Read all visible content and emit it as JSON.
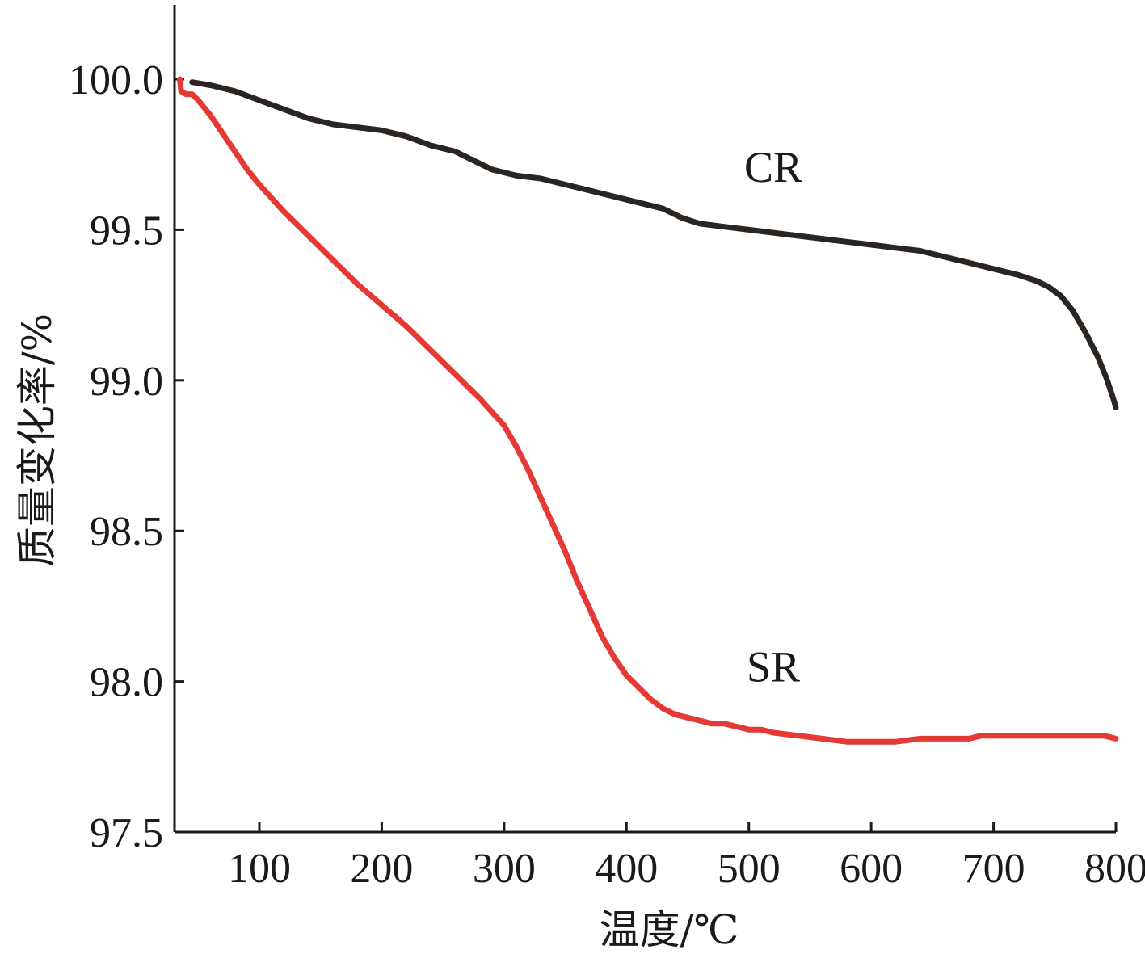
{
  "chart_data": {
    "type": "line",
    "title": "",
    "xlabel": "温度/℃",
    "ylabel": "质量变化率/%",
    "xlim": [
      35,
      800
    ],
    "ylim": [
      97.5,
      100.25
    ],
    "x_ticks": [
      100,
      200,
      300,
      400,
      500,
      600,
      700,
      800
    ],
    "y_ticks": [
      97.5,
      98.0,
      98.5,
      99.0,
      99.5,
      100.0
    ],
    "x_tick_labels": [
      "100",
      "200",
      "300",
      "400",
      "500",
      "600",
      "700",
      "800"
    ],
    "y_tick_labels": [
      "97.5",
      "98.0",
      "98.5",
      "99.0",
      "99.5",
      "100.0"
    ],
    "grid": false,
    "legend": "none",
    "series": [
      {
        "name": "CR",
        "color": "#2b2522",
        "points": [
          [
            45,
            99.99
          ],
          [
            60,
            99.98
          ],
          [
            70,
            99.97
          ],
          [
            80,
            99.96
          ],
          [
            100,
            99.93
          ],
          [
            120,
            99.9
          ],
          [
            140,
            99.87
          ],
          [
            160,
            99.85
          ],
          [
            180,
            99.84
          ],
          [
            200,
            99.83
          ],
          [
            220,
            99.81
          ],
          [
            240,
            99.78
          ],
          [
            260,
            99.76
          ],
          [
            275,
            99.73
          ],
          [
            290,
            99.7
          ],
          [
            310,
            99.68
          ],
          [
            330,
            99.67
          ],
          [
            350,
            99.65
          ],
          [
            370,
            99.63
          ],
          [
            390,
            99.61
          ],
          [
            410,
            99.59
          ],
          [
            430,
            99.57
          ],
          [
            445,
            99.54
          ],
          [
            460,
            99.52
          ],
          [
            480,
            99.51
          ],
          [
            500,
            99.5
          ],
          [
            520,
            99.49
          ],
          [
            540,
            99.48
          ],
          [
            560,
            99.47
          ],
          [
            580,
            99.46
          ],
          [
            600,
            99.45
          ],
          [
            620,
            99.44
          ],
          [
            640,
            99.43
          ],
          [
            660,
            99.41
          ],
          [
            680,
            99.39
          ],
          [
            700,
            99.37
          ],
          [
            720,
            99.35
          ],
          [
            735,
            99.33
          ],
          [
            745,
            99.31
          ],
          [
            755,
            99.28
          ],
          [
            765,
            99.23
          ],
          [
            775,
            99.16
          ],
          [
            785,
            99.08
          ],
          [
            792,
            99.01
          ],
          [
            797,
            98.95
          ],
          [
            800,
            98.91
          ]
        ]
      },
      {
        "name": "SR",
        "color": "#e53935",
        "points": [
          [
            35,
            100.0
          ],
          [
            36,
            99.96
          ],
          [
            40,
            99.95
          ],
          [
            45,
            99.95
          ],
          [
            50,
            99.93
          ],
          [
            60,
            99.88
          ],
          [
            70,
            99.82
          ],
          [
            80,
            99.76
          ],
          [
            90,
            99.7
          ],
          [
            100,
            99.65
          ],
          [
            120,
            99.56
          ],
          [
            140,
            99.48
          ],
          [
            160,
            99.4
          ],
          [
            180,
            99.32
          ],
          [
            200,
            99.25
          ],
          [
            220,
            99.18
          ],
          [
            240,
            99.1
          ],
          [
            260,
            99.02
          ],
          [
            280,
            98.94
          ],
          [
            300,
            98.85
          ],
          [
            310,
            98.78
          ],
          [
            320,
            98.7
          ],
          [
            330,
            98.61
          ],
          [
            340,
            98.52
          ],
          [
            350,
            98.43
          ],
          [
            360,
            98.33
          ],
          [
            370,
            98.24
          ],
          [
            380,
            98.15
          ],
          [
            390,
            98.08
          ],
          [
            400,
            98.02
          ],
          [
            410,
            97.98
          ],
          [
            420,
            97.94
          ],
          [
            430,
            97.91
          ],
          [
            440,
            97.89
          ],
          [
            450,
            97.88
          ],
          [
            460,
            97.87
          ],
          [
            470,
            97.86
          ],
          [
            480,
            97.86
          ],
          [
            490,
            97.85
          ],
          [
            500,
            97.84
          ],
          [
            510,
            97.84
          ],
          [
            520,
            97.83
          ],
          [
            540,
            97.82
          ],
          [
            560,
            97.81
          ],
          [
            580,
            97.8
          ],
          [
            600,
            97.8
          ],
          [
            620,
            97.8
          ],
          [
            640,
            97.81
          ],
          [
            660,
            97.81
          ],
          [
            680,
            97.81
          ],
          [
            690,
            97.82
          ],
          [
            700,
            97.82
          ],
          [
            720,
            97.82
          ],
          [
            740,
            97.82
          ],
          [
            760,
            97.82
          ],
          [
            780,
            97.82
          ],
          [
            790,
            97.82
          ],
          [
            800,
            97.81
          ]
        ]
      }
    ],
    "annotations": [
      {
        "text": "CR",
        "x": 520,
        "y": 99.66
      },
      {
        "text": "SR",
        "x": 520,
        "y": 98.0
      }
    ]
  }
}
